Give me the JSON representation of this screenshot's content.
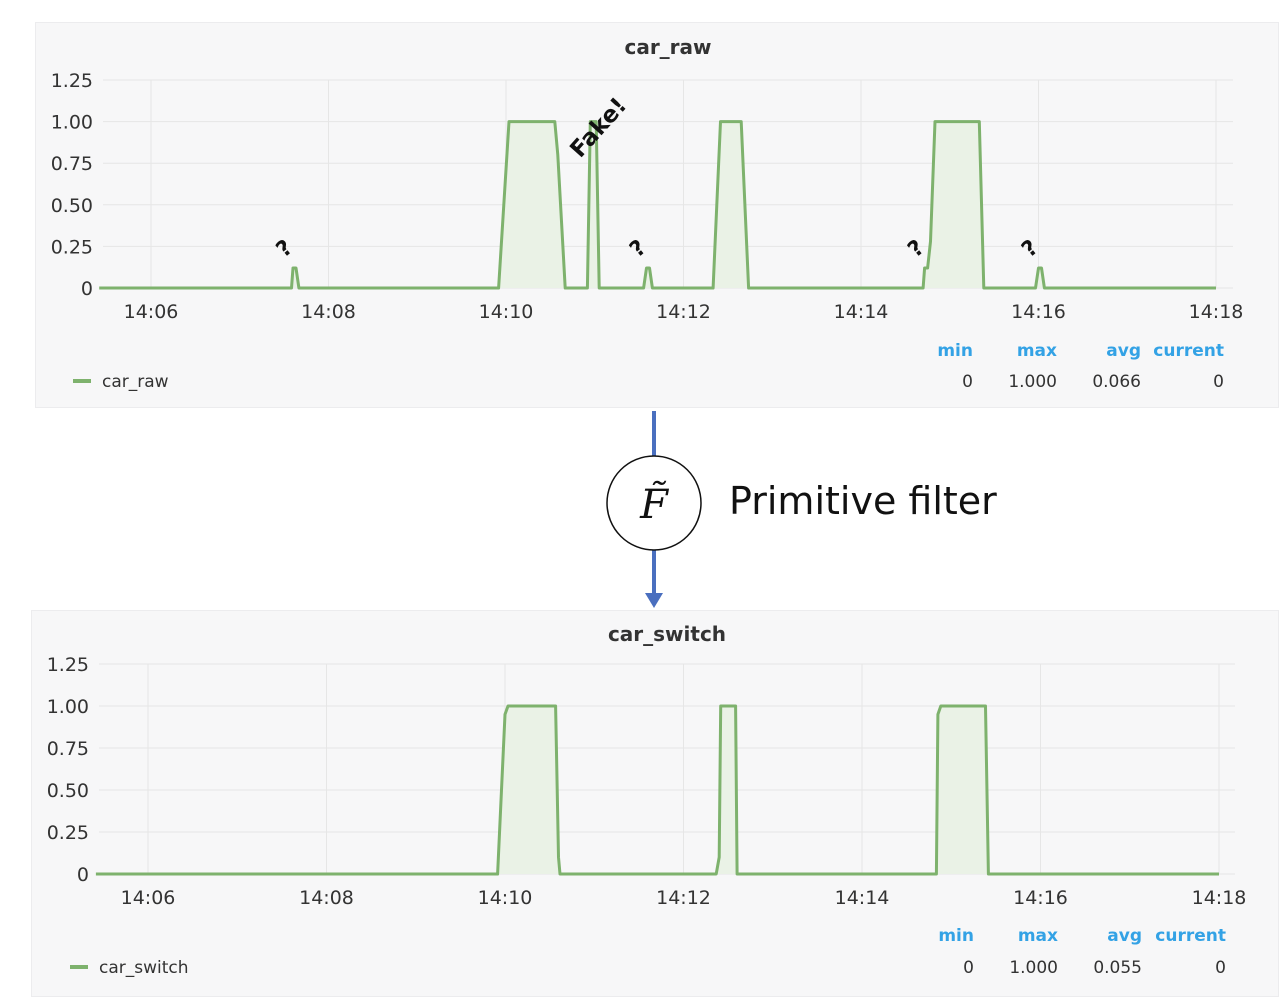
{
  "colors": {
    "series": "#7eb26d",
    "fill": "#eaf2e6",
    "stat_header": "#33a2e5",
    "arrow": "#4a6fbf",
    "grid": "#e6e6e6"
  },
  "filter": {
    "symbol": "F̃",
    "label": "Primitive filter"
  },
  "stats_headers": [
    "min",
    "max",
    "avg",
    "current"
  ],
  "chart_data": [
    {
      "type": "line",
      "title": "car_raw",
      "x_ticks": [
        "14:06",
        "14:08",
        "14:10",
        "14:12",
        "14:14",
        "14:16",
        "14:18"
      ],
      "y_ticks": [
        "0",
        "0.25",
        "0.50",
        "0.75",
        "1.00",
        "1.25"
      ],
      "ylim": [
        0,
        1.25
      ],
      "xlim": [
        "14:05:25",
        "14:18"
      ],
      "grid": true,
      "legend_position": "bottom-left",
      "series": [
        {
          "name": "car_raw",
          "x": [
            "14:05:25",
            "14:07:35",
            "14:07:36",
            "14:07:38",
            "14:07:40",
            "14:09:55",
            "14:10:02",
            "14:10:08",
            "14:10:10",
            "14:10:33",
            "14:10:35",
            "14:10:40",
            "14:10:55",
            "14:10:57",
            "14:11:01",
            "14:11:03",
            "14:11:33",
            "14:11:35",
            "14:11:37",
            "14:11:39",
            "14:12:20",
            "14:12:25",
            "14:12:39",
            "14:12:44",
            "14:14:42",
            "14:14:43",
            "14:14:45",
            "14:14:47",
            "14:14:50",
            "14:15:20",
            "14:15:23",
            "14:15:58",
            "14:16:00",
            "14:16:02",
            "14:16:04",
            "14:18"
          ],
          "y": [
            0,
            0,
            0.12,
            0.12,
            0,
            0,
            1,
            1,
            1,
            1,
            0.8,
            0,
            0,
            1,
            1,
            0,
            0,
            0.12,
            0.12,
            0,
            0,
            1,
            1,
            0,
            0,
            0.12,
            0.12,
            0.28,
            1,
            1,
            0,
            0,
            0.12,
            0.12,
            0,
            0
          ]
        }
      ],
      "annotations": [
        {
          "text": "?",
          "x": "14:07:36"
        },
        {
          "text": "Fake!",
          "x": "14:10:57"
        },
        {
          "text": "?",
          "x": "14:11:35"
        },
        {
          "text": "?",
          "x": "14:14:43"
        },
        {
          "text": "?",
          "x": "14:16:00"
        }
      ],
      "stats": {
        "min": "0",
        "max": "1.000",
        "avg": "0.066",
        "current": "0"
      }
    },
    {
      "type": "line",
      "title": "car_switch",
      "x_ticks": [
        "14:06",
        "14:08",
        "14:10",
        "14:12",
        "14:14",
        "14:16",
        "14:18"
      ],
      "y_ticks": [
        "0",
        "0.25",
        "0.50",
        "0.75",
        "1.00",
        "1.25"
      ],
      "ylim": [
        0,
        1.25
      ],
      "xlim": [
        "14:05:25",
        "14:18"
      ],
      "grid": true,
      "legend_position": "bottom-left",
      "series": [
        {
          "name": "car_switch",
          "x": [
            "14:05:25",
            "14:09:55",
            "14:10:00",
            "14:10:02",
            "14:10:09",
            "14:10:10",
            "14:10:34",
            "14:10:36",
            "14:10:37",
            "14:10:39",
            "14:12:22",
            "14:12:24",
            "14:12:25",
            "14:12:35",
            "14:12:36",
            "14:14:50",
            "14:14:51",
            "14:14:53",
            "14:15:23",
            "14:15:25",
            "14:18"
          ],
          "y": [
            0,
            0,
            0.95,
            1,
            1,
            1,
            1,
            0.1,
            0,
            0,
            0,
            0.1,
            1,
            1,
            0,
            0,
            0.95,
            1,
            1,
            0,
            0
          ]
        }
      ],
      "stats": {
        "min": "0",
        "max": "1.000",
        "avg": "0.055",
        "current": "0"
      }
    }
  ]
}
